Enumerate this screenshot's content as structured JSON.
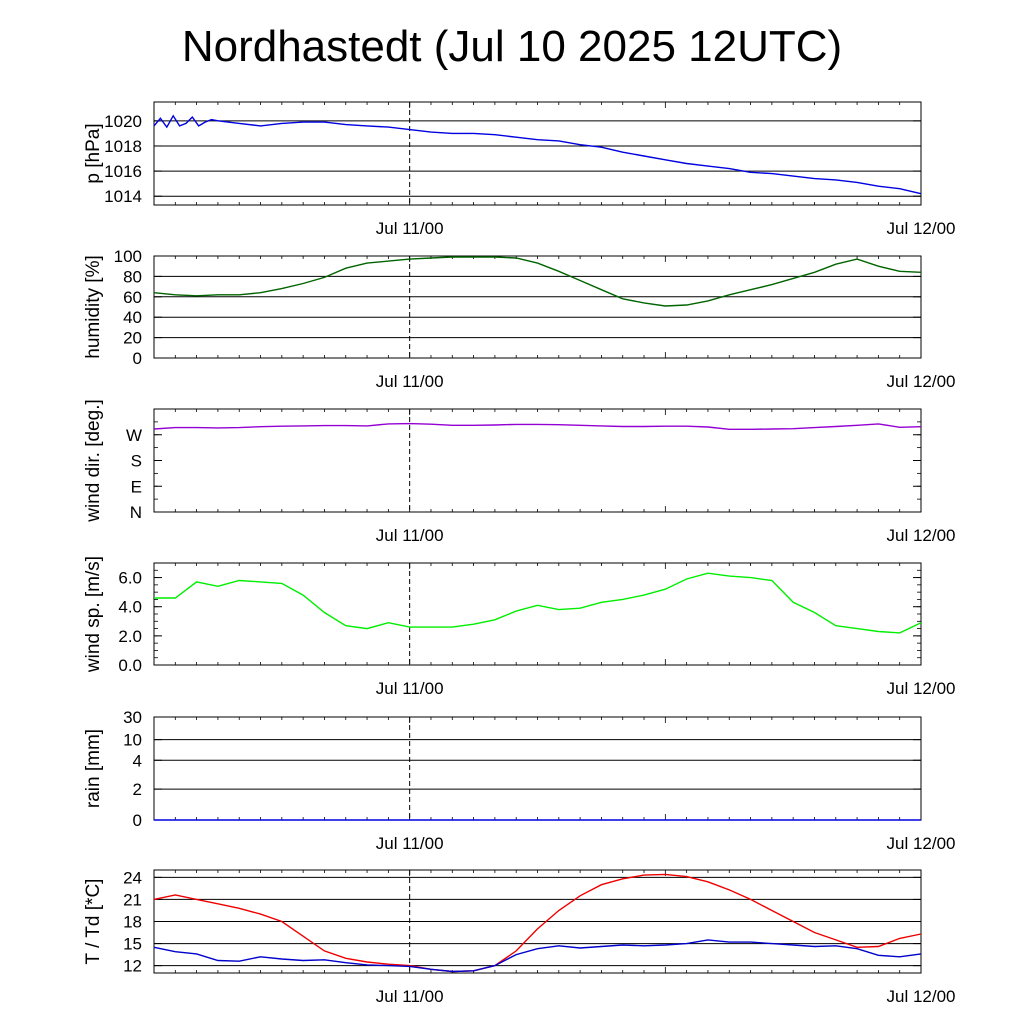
{
  "title": "Nordhastedt (Jul 10 2025 12UTC)",
  "colors": {
    "pressure": "#0000e0",
    "humidity": "#006400",
    "wind_dir": "#9400d3",
    "wind_speed": "#00ee00",
    "temperature": "#ee0000",
    "dewpoint": "#0000cc"
  },
  "chart_data": [
    {
      "type": "line",
      "ylabel": "p [hPa]",
      "ylim": [
        1013.3,
        1021.5
      ],
      "yticks": [
        {
          "v": 1014,
          "label": "1014"
        },
        {
          "v": 1016,
          "label": "1016"
        },
        {
          "v": 1018,
          "label": "1018"
        },
        {
          "v": 1020,
          "label": "1020"
        }
      ],
      "xticks": [
        {
          "x": 12,
          "label": "Jul 11/00"
        },
        {
          "x": 36,
          "label": "Jul 12/00"
        }
      ],
      "xlim": [
        0,
        36
      ],
      "grid": true,
      "series": [
        {
          "color": "#0000e0",
          "x": [
            0,
            0.3,
            0.6,
            0.9,
            1.2,
            1.5,
            1.8,
            2.1,
            2.4,
            2.7,
            3,
            4,
            5,
            6,
            7,
            8,
            9,
            10,
            11,
            12,
            13,
            14,
            15,
            16,
            17,
            18,
            19,
            20,
            21,
            22,
            23,
            24,
            25,
            26,
            27,
            28,
            29,
            30,
            31,
            32,
            33,
            34,
            35,
            36
          ],
          "y": [
            1019.6,
            1020.2,
            1019.5,
            1020.4,
            1019.6,
            1019.8,
            1020.3,
            1019.6,
            1019.9,
            1020.1,
            1020.0,
            1019.8,
            1019.6,
            1019.8,
            1019.9,
            1019.9,
            1019.7,
            1019.6,
            1019.5,
            1019.3,
            1019.1,
            1019.0,
            1019.0,
            1018.9,
            1018.7,
            1018.5,
            1018.4,
            1018.1,
            1017.9,
            1017.5,
            1017.2,
            1016.9,
            1016.6,
            1016.4,
            1016.2,
            1015.9,
            1015.8,
            1015.6,
            1015.4,
            1015.3,
            1015.1,
            1014.8,
            1014.6,
            1014.2
          ]
        }
      ]
    },
    {
      "type": "line",
      "ylabel": "humidity [%]",
      "ylim": [
        0,
        100
      ],
      "yticks": [
        {
          "v": 0,
          "label": "0"
        },
        {
          "v": 20,
          "label": "20"
        },
        {
          "v": 40,
          "label": "40"
        },
        {
          "v": 60,
          "label": "60"
        },
        {
          "v": 80,
          "label": "80"
        },
        {
          "v": 100,
          "label": "100"
        }
      ],
      "xticks": [
        {
          "x": 12,
          "label": "Jul 11/00"
        },
        {
          "x": 36,
          "label": "Jul 12/00"
        }
      ],
      "xlim": [
        0,
        36
      ],
      "grid": true,
      "series": [
        {
          "color": "#006400",
          "x": [
            0,
            1,
            2,
            3,
            4,
            5,
            6,
            7,
            8,
            9,
            10,
            11,
            12,
            13,
            14,
            15,
            16,
            17,
            18,
            19,
            20,
            21,
            22,
            23,
            24,
            25,
            26,
            27,
            28,
            29,
            30,
            31,
            32,
            33,
            34,
            35,
            36
          ],
          "y": [
            64,
            62,
            61,
            62,
            62,
            64,
            68,
            73,
            79,
            88,
            93,
            95,
            97,
            98,
            99,
            99,
            99,
            98,
            93,
            85,
            76,
            67,
            58,
            54,
            51,
            52,
            56,
            62,
            67,
            72,
            78,
            84,
            92,
            97,
            90,
            85,
            84
          ]
        }
      ]
    },
    {
      "type": "line",
      "ylabel": "wind dir. [deg.]",
      "ylim": [
        0,
        360
      ],
      "yticks": [
        {
          "v": 0,
          "label": "N"
        },
        {
          "v": 90,
          "label": "E"
        },
        {
          "v": 180,
          "label": "S"
        },
        {
          "v": 270,
          "label": "W"
        }
      ],
      "xticks": [
        {
          "x": 12,
          "label": "Jul 11/00"
        },
        {
          "x": 36,
          "label": "Jul 12/00"
        }
      ],
      "xlim": [
        0,
        36
      ],
      "grid": false,
      "series": [
        {
          "color": "#9400d3",
          "x": [
            0,
            1,
            2,
            3,
            4,
            5,
            6,
            7,
            8,
            9,
            10,
            11,
            12,
            13,
            14,
            15,
            16,
            17,
            18,
            19,
            20,
            21,
            22,
            23,
            24,
            25,
            26,
            27,
            28,
            29,
            30,
            31,
            32,
            33,
            34,
            35,
            36
          ],
          "y": [
            290,
            295,
            295,
            294,
            295,
            298,
            300,
            301,
            302,
            302,
            301,
            308,
            309,
            307,
            303,
            303,
            304,
            306,
            306,
            305,
            303,
            301,
            299,
            299,
            300,
            300,
            297,
            289,
            289,
            290,
            291,
            295,
            299,
            303,
            308,
            296,
            298
          ]
        }
      ]
    },
    {
      "type": "line",
      "ylabel": "wind sp. [m/s]",
      "ylim": [
        0,
        7
      ],
      "yticks": [
        {
          "v": 0,
          "label": "0.0"
        },
        {
          "v": 2,
          "label": "2.0"
        },
        {
          "v": 4,
          "label": "4.0"
        },
        {
          "v": 6,
          "label": "6.0"
        }
      ],
      "xticks": [
        {
          "x": 12,
          "label": "Jul 11/00"
        },
        {
          "x": 36,
          "label": "Jul 12/00"
        }
      ],
      "xlim": [
        0,
        36
      ],
      "grid": false,
      "series": [
        {
          "color": "#00ee00",
          "x": [
            0,
            1,
            2,
            3,
            4,
            5,
            6,
            7,
            8,
            9,
            10,
            11,
            12,
            13,
            14,
            15,
            16,
            17,
            18,
            19,
            20,
            21,
            22,
            23,
            24,
            25,
            26,
            27,
            28,
            29,
            30,
            31,
            32,
            33,
            34,
            35,
            36
          ],
          "y": [
            4.6,
            4.6,
            5.7,
            5.4,
            5.8,
            5.7,
            5.6,
            4.8,
            3.6,
            2.7,
            2.5,
            2.9,
            2.6,
            2.6,
            2.6,
            2.8,
            3.1,
            3.7,
            4.1,
            3.8,
            3.9,
            4.3,
            4.5,
            4.8,
            5.2,
            5.9,
            6.3,
            6.1,
            6.0,
            5.8,
            4.3,
            3.6,
            2.7,
            2.5,
            2.3,
            2.2,
            2.9
          ]
        }
      ]
    },
    {
      "type": "line",
      "ylabel": "rain [mm]",
      "ylim": [
        0,
        30
      ],
      "yticks": [
        {
          "v": 0,
          "label": "0"
        },
        {
          "v": 2,
          "label": "2"
        },
        {
          "v": 4,
          "label": "4"
        },
        {
          "v": 10,
          "label": "10"
        },
        {
          "v": 30,
          "label": "30"
        }
      ],
      "xticks": [
        {
          "x": 12,
          "label": "Jul 11/00"
        },
        {
          "x": 36,
          "label": "Jul 12/00"
        }
      ],
      "xlim": [
        0,
        36
      ],
      "grid": true,
      "series": [
        {
          "color": "#0000e0",
          "x": [
            0,
            36
          ],
          "y": [
            0,
            0
          ]
        }
      ]
    },
    {
      "type": "line",
      "ylabel": "T / Td [*C]",
      "ylim": [
        11,
        25
      ],
      "yticks": [
        {
          "v": 12,
          "label": "12"
        },
        {
          "v": 15,
          "label": "15"
        },
        {
          "v": 18,
          "label": "18"
        },
        {
          "v": 21,
          "label": "21"
        },
        {
          "v": 24,
          "label": "24"
        }
      ],
      "xticks": [
        {
          "x": 12,
          "label": "Jul 11/00"
        },
        {
          "x": 36,
          "label": "Jul 12/00"
        }
      ],
      "xlim": [
        0,
        36
      ],
      "grid": true,
      "series": [
        {
          "color": "#ee0000",
          "x": [
            0,
            1,
            2,
            3,
            4,
            5,
            6,
            7,
            8,
            9,
            10,
            11,
            12,
            13,
            14,
            15,
            16,
            17,
            18,
            19,
            20,
            21,
            22,
            23,
            24,
            25,
            26,
            27,
            28,
            29,
            30,
            31,
            32,
            33,
            34,
            35,
            36
          ],
          "y": [
            21,
            21.6,
            21,
            20.4,
            19.8,
            19,
            18,
            16,
            14,
            13,
            12.5,
            12.2,
            12,
            11.5,
            11.2,
            11.3,
            12,
            14,
            17,
            19.5,
            21.5,
            23,
            23.8,
            24.3,
            24.4,
            24.1,
            23.4,
            22.3,
            21,
            19.5,
            18,
            16.5,
            15.5,
            14.5,
            14.6,
            15.7,
            16.3
          ]
        },
        {
          "color": "#0000cc",
          "x": [
            0,
            1,
            2,
            3,
            4,
            5,
            6,
            7,
            8,
            9,
            10,
            11,
            12,
            13,
            14,
            15,
            16,
            17,
            18,
            19,
            20,
            21,
            22,
            23,
            24,
            25,
            26,
            27,
            28,
            29,
            30,
            31,
            32,
            33,
            34,
            35,
            36
          ],
          "y": [
            14.5,
            13.9,
            13.6,
            12.7,
            12.6,
            13.2,
            12.9,
            12.7,
            12.8,
            12.4,
            12.1,
            12.0,
            11.9,
            11.5,
            11.2,
            11.3,
            12,
            13.5,
            14.3,
            14.7,
            14.4,
            14.6,
            14.8,
            14.7,
            14.8,
            15,
            15.5,
            15.2,
            15.2,
            15,
            14.8,
            14.6,
            14.7,
            14.3,
            13.4,
            13.2,
            13.6
          ]
        }
      ]
    }
  ]
}
